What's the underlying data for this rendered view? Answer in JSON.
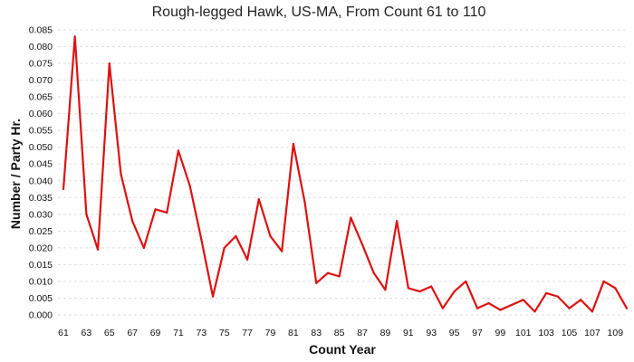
{
  "chart_data": {
    "type": "line",
    "title": "Rough-legged Hawk, US-MA,  From Count 61 to 110",
    "xlabel": "Count Year",
    "ylabel": "Number / Party Hr.",
    "xlim": [
      61,
      110
    ],
    "ylim": [
      0,
      0.085
    ],
    "y_tick_step": 0.005,
    "x_tick_labels": [
      "61",
      "63",
      "65",
      "67",
      "69",
      "71",
      "73",
      "75",
      "77",
      "79",
      "81",
      "83",
      "85",
      "87",
      "89",
      "91",
      "93",
      "95",
      "97",
      "99",
      "101",
      "103",
      "105",
      "107",
      "109"
    ],
    "grid": true,
    "series": [
      {
        "name": "Rough-legged Hawk",
        "color": "#dd1111",
        "x": [
          61,
          62,
          63,
          64,
          65,
          66,
          67,
          68,
          69,
          70,
          71,
          72,
          73,
          74,
          75,
          76,
          77,
          78,
          79,
          80,
          81,
          82,
          83,
          84,
          85,
          86,
          87,
          88,
          89,
          90,
          91,
          92,
          93,
          94,
          95,
          96,
          97,
          98,
          99,
          100,
          101,
          102,
          103,
          104,
          105,
          106,
          107,
          108,
          109,
          110
        ],
        "values": [
          0.0375,
          0.083,
          0.03,
          0.0195,
          0.075,
          0.042,
          0.028,
          0.02,
          0.0315,
          0.0305,
          0.049,
          0.0385,
          0.0225,
          0.0055,
          0.02,
          0.0235,
          0.0165,
          0.0345,
          0.0235,
          0.019,
          0.051,
          0.0335,
          0.0095,
          0.0125,
          0.0115,
          0.029,
          0.021,
          0.0125,
          0.0075,
          0.028,
          0.008,
          0.007,
          0.0085,
          0.002,
          0.007,
          0.01,
          0.002,
          0.0035,
          0.0015,
          0.003,
          0.0045,
          0.001,
          0.0065,
          0.0055,
          0.002,
          0.0045,
          0.001,
          0.01,
          0.008,
          0.002
        ]
      }
    ]
  }
}
